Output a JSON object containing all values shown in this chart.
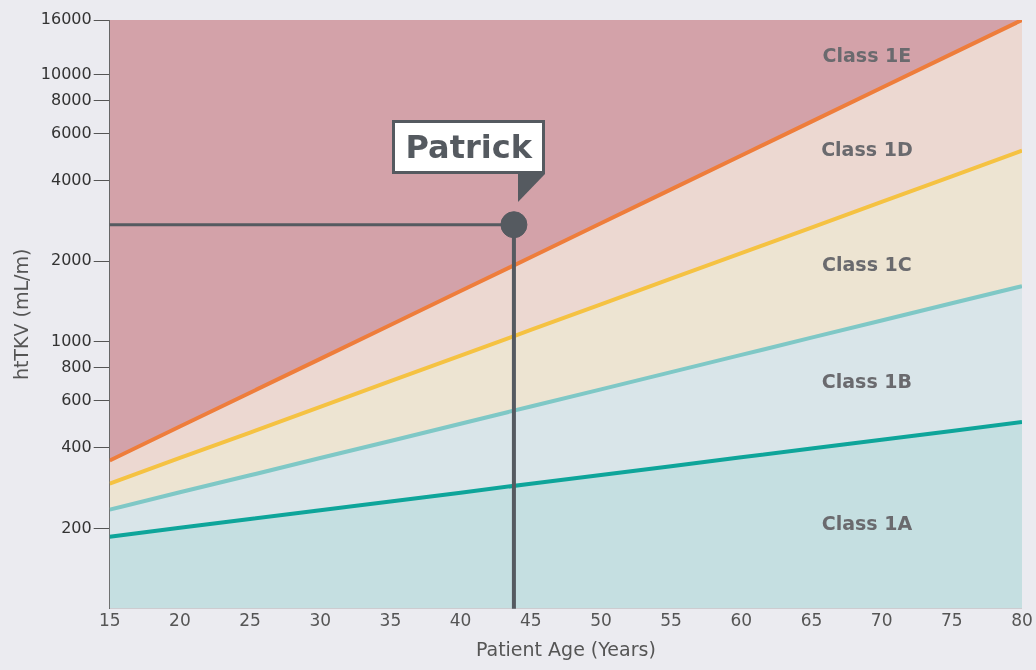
{
  "chart_data": {
    "type": "area",
    "xlabel": "Patient Age (Years)",
    "ylabel": "htTKV (mL/m)",
    "log": "y",
    "grid": false,
    "legend": false,
    "marker": "none",
    "x": [
      15,
      20,
      25,
      30,
      35,
      40,
      45,
      50,
      55,
      60,
      65,
      70,
      75,
      80
    ],
    "xlim": [
      15,
      80
    ],
    "xticks": [
      15,
      20,
      25,
      30,
      35,
      40,
      45,
      50,
      55,
      60,
      65,
      70,
      75,
      80
    ],
    "ylim": [
      100,
      16000
    ],
    "yticks": [
      200,
      400,
      600,
      800,
      1000,
      2000,
      4000,
      6000,
      8000,
      10000,
      16000
    ],
    "bands": [
      {
        "axis": "y",
        "from": 100,
        "to": 16000,
        "label": "Class 1E",
        "color": "#d3a2a9"
      }
    ],
    "series": [
      {
        "type": "area",
        "name": "Class 1A",
        "color": "#0ea59a",
        "values": [
          186,
          201,
          217,
          234,
          252,
          272,
          294,
          317,
          342,
          369,
          398,
          429,
          463,
          500
        ]
      },
      {
        "type": "area",
        "name": "Class 1B",
        "color": "#7fc8c6",
        "values": [
          235,
          273,
          316,
          367,
          425,
          493,
          572,
          663,
          769,
          892,
          1035,
          1200,
          1392,
          1614
        ]
      },
      {
        "type": "area",
        "name": "Class 1C",
        "color": "#f5c242",
        "values": [
          294,
          367,
          457,
          570,
          711,
          887,
          1106,
          1379,
          1720,
          2145,
          2675,
          3336,
          4160,
          5190
        ]
      },
      {
        "type": "area",
        "name": "Class 1D",
        "color": "#ee7d3b",
        "values": [
          359,
          481,
          644,
          862,
          1155,
          1547,
          2071,
          2774,
          3715,
          4975,
          6662,
          8922,
          11948,
          16000
        ]
      },
      {
        "type": "scatter",
        "name": "Patrick",
        "color": "#555a60",
        "marker": "circle",
        "x": [
          43.8
        ],
        "values": [
          2740
        ],
        "errors": [
          [
            100,
            2740
          ]
        ],
        "xerrors": [
          [
            15,
            43.8
          ]
        ]
      }
    ]
  }
}
